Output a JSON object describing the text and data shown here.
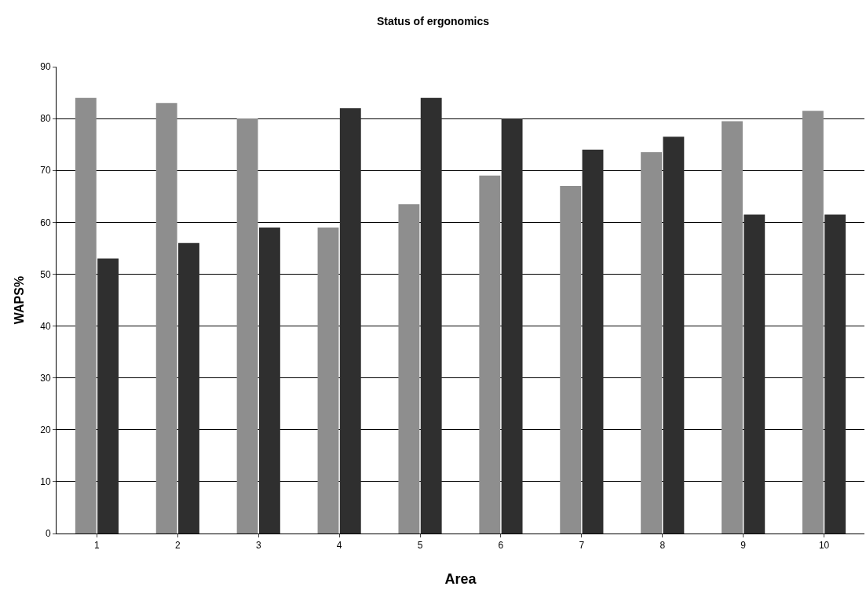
{
  "chart_data": {
    "type": "bar",
    "title": "Status of ergonomics",
    "xlabel": "Area",
    "ylabel": "WAPS%",
    "categories": [
      "1",
      "2",
      "3",
      "4",
      "5",
      "6",
      "7",
      "8",
      "9",
      "10"
    ],
    "series": [
      {
        "color": "#8e8e8e",
        "values": [
          84,
          83,
          80,
          59,
          63.5,
          69,
          67,
          73.5,
          79.5,
          81.5
        ]
      },
      {
        "color": "#2f2f2f",
        "values": [
          53,
          56,
          59,
          82,
          84,
          80,
          74,
          76.5,
          61.5,
          61.5
        ]
      }
    ],
    "ylim": [
      0,
      90
    ],
    "yticks": [
      0,
      10,
      20,
      30,
      40,
      50,
      60,
      70,
      80,
      90
    ],
    "grid": "y"
  }
}
